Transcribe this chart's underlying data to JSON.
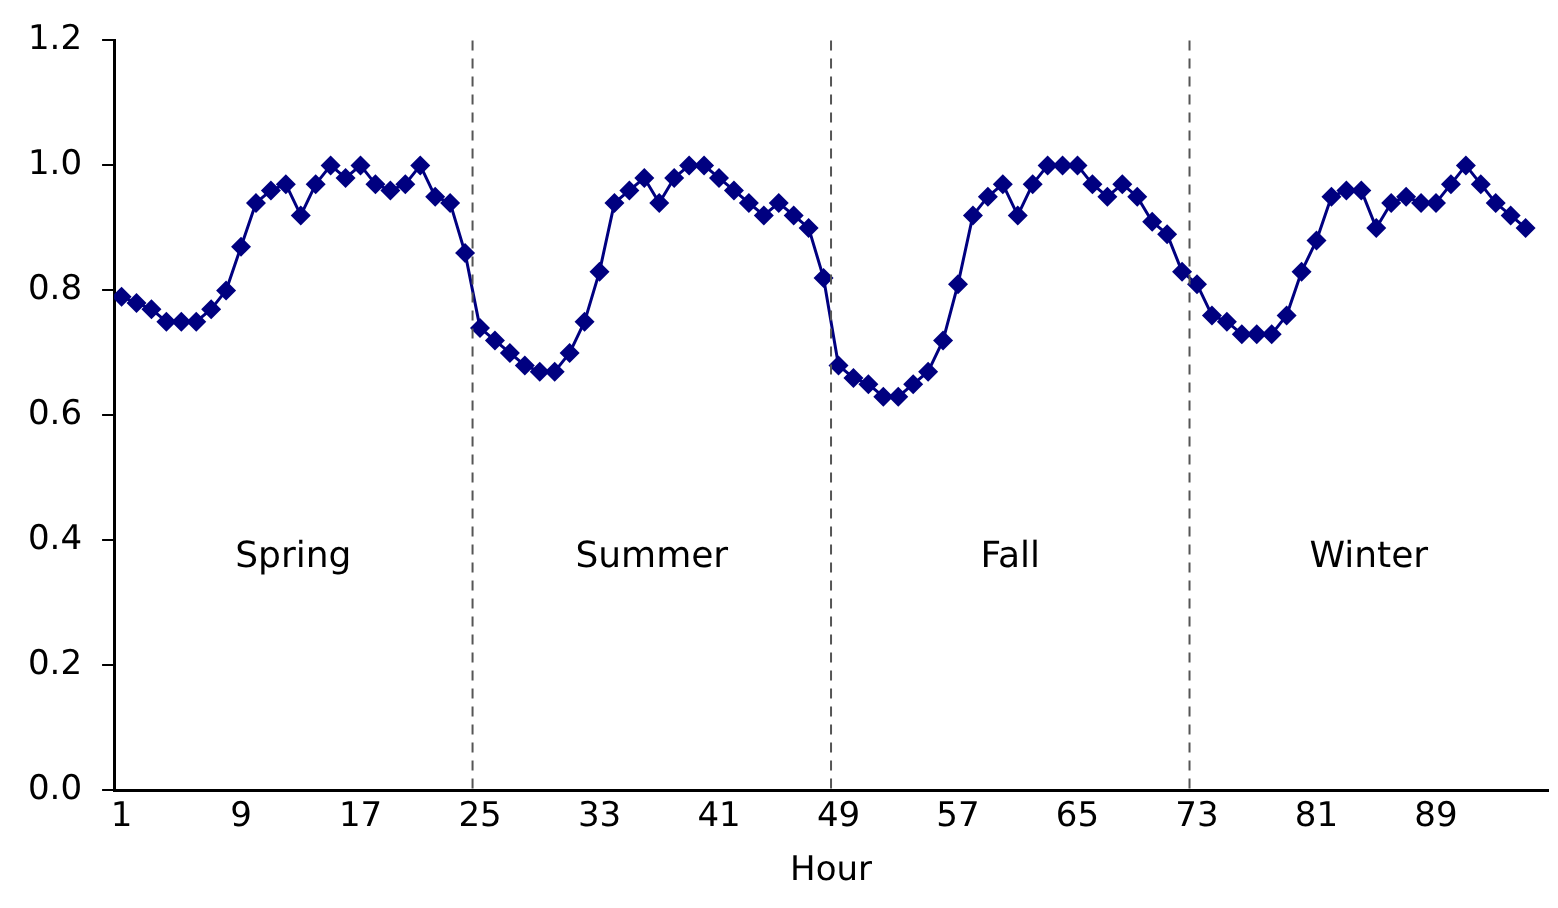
{
  "chart_data": {
    "type": "line",
    "xlabel": "Hour",
    "x": [
      1,
      2,
      3,
      4,
      5,
      6,
      7,
      8,
      9,
      10,
      11,
      12,
      13,
      14,
      15,
      16,
      17,
      18,
      19,
      20,
      21,
      22,
      23,
      24,
      25,
      26,
      27,
      28,
      29,
      30,
      31,
      32,
      33,
      34,
      35,
      36,
      37,
      38,
      39,
      40,
      41,
      42,
      43,
      44,
      45,
      46,
      47,
      48,
      49,
      50,
      51,
      52,
      53,
      54,
      55,
      56,
      57,
      58,
      59,
      60,
      61,
      62,
      63,
      64,
      65,
      66,
      67,
      68,
      69,
      70,
      71,
      72,
      73,
      74,
      75,
      76,
      77,
      78,
      79,
      80,
      81,
      82,
      83,
      84,
      85,
      86,
      87,
      88,
      89,
      90,
      91,
      92,
      93,
      94,
      95
    ],
    "series": [
      {
        "color": "#000080",
        "values": [
          0.79,
          0.78,
          0.77,
          0.75,
          0.75,
          0.75,
          0.77,
          0.8,
          0.87,
          0.94,
          0.96,
          0.97,
          0.92,
          0.97,
          1.0,
          0.98,
          1.0,
          0.97,
          0.96,
          0.97,
          1.0,
          0.95,
          0.94,
          0.86,
          0.74,
          0.72,
          0.7,
          0.68,
          0.67,
          0.67,
          0.7,
          0.75,
          0.83,
          0.94,
          0.96,
          0.98,
          0.94,
          0.98,
          1.0,
          1.0,
          0.98,
          0.96,
          0.94,
          0.92,
          0.94,
          0.92,
          0.9,
          0.82,
          0.68,
          0.66,
          0.65,
          0.63,
          0.63,
          0.65,
          0.67,
          0.72,
          0.81,
          0.92,
          0.95,
          0.97,
          0.92,
          0.97,
          1.0,
          1.0,
          1.0,
          0.97,
          0.95,
          0.97,
          0.95,
          0.91,
          0.89,
          0.83,
          0.81,
          0.76,
          0.75,
          0.73,
          0.73,
          0.73,
          0.76,
          0.83,
          0.88,
          0.95,
          0.96,
          0.96,
          0.9,
          0.94,
          0.95,
          0.94,
          0.94,
          0.97,
          1.0,
          0.97,
          0.94,
          0.92,
          0.9
        ]
      }
    ],
    "xlim": [
      0.5,
      96.5
    ],
    "xticks": [
      1,
      9,
      17,
      25,
      33,
      41,
      49,
      57,
      65,
      73,
      81,
      89
    ],
    "ylim": [
      0,
      1.2
    ],
    "yticks": [
      {
        "value": 0,
        "label": "0.0"
      },
      {
        "value": 0.2,
        "label": "0.2"
      },
      {
        "value": 0.4,
        "label": "0.4"
      },
      {
        "value": 0.6,
        "label": "0.6"
      },
      {
        "value": 0.8,
        "label": "0.8"
      },
      {
        "value": 1,
        "label": "1.0"
      },
      {
        "value": 1.2,
        "label": "1.2"
      }
    ],
    "ref_lines": [
      {
        "axis": "x",
        "value": 24.5,
        "color": "#555555",
        "line_style": "dashed"
      },
      {
        "axis": "x",
        "value": 48.5,
        "color": "#555555",
        "line_style": "dashed"
      },
      {
        "axis": "x",
        "value": 72.5,
        "color": "#555555",
        "line_style": "dashed"
      }
    ],
    "annotations": [
      "Spring",
      "Summer",
      "Fall",
      "Winter"
    ],
    "grid": false,
    "legend": false,
    "marker": "diamond",
    "line_style": "solid"
  }
}
